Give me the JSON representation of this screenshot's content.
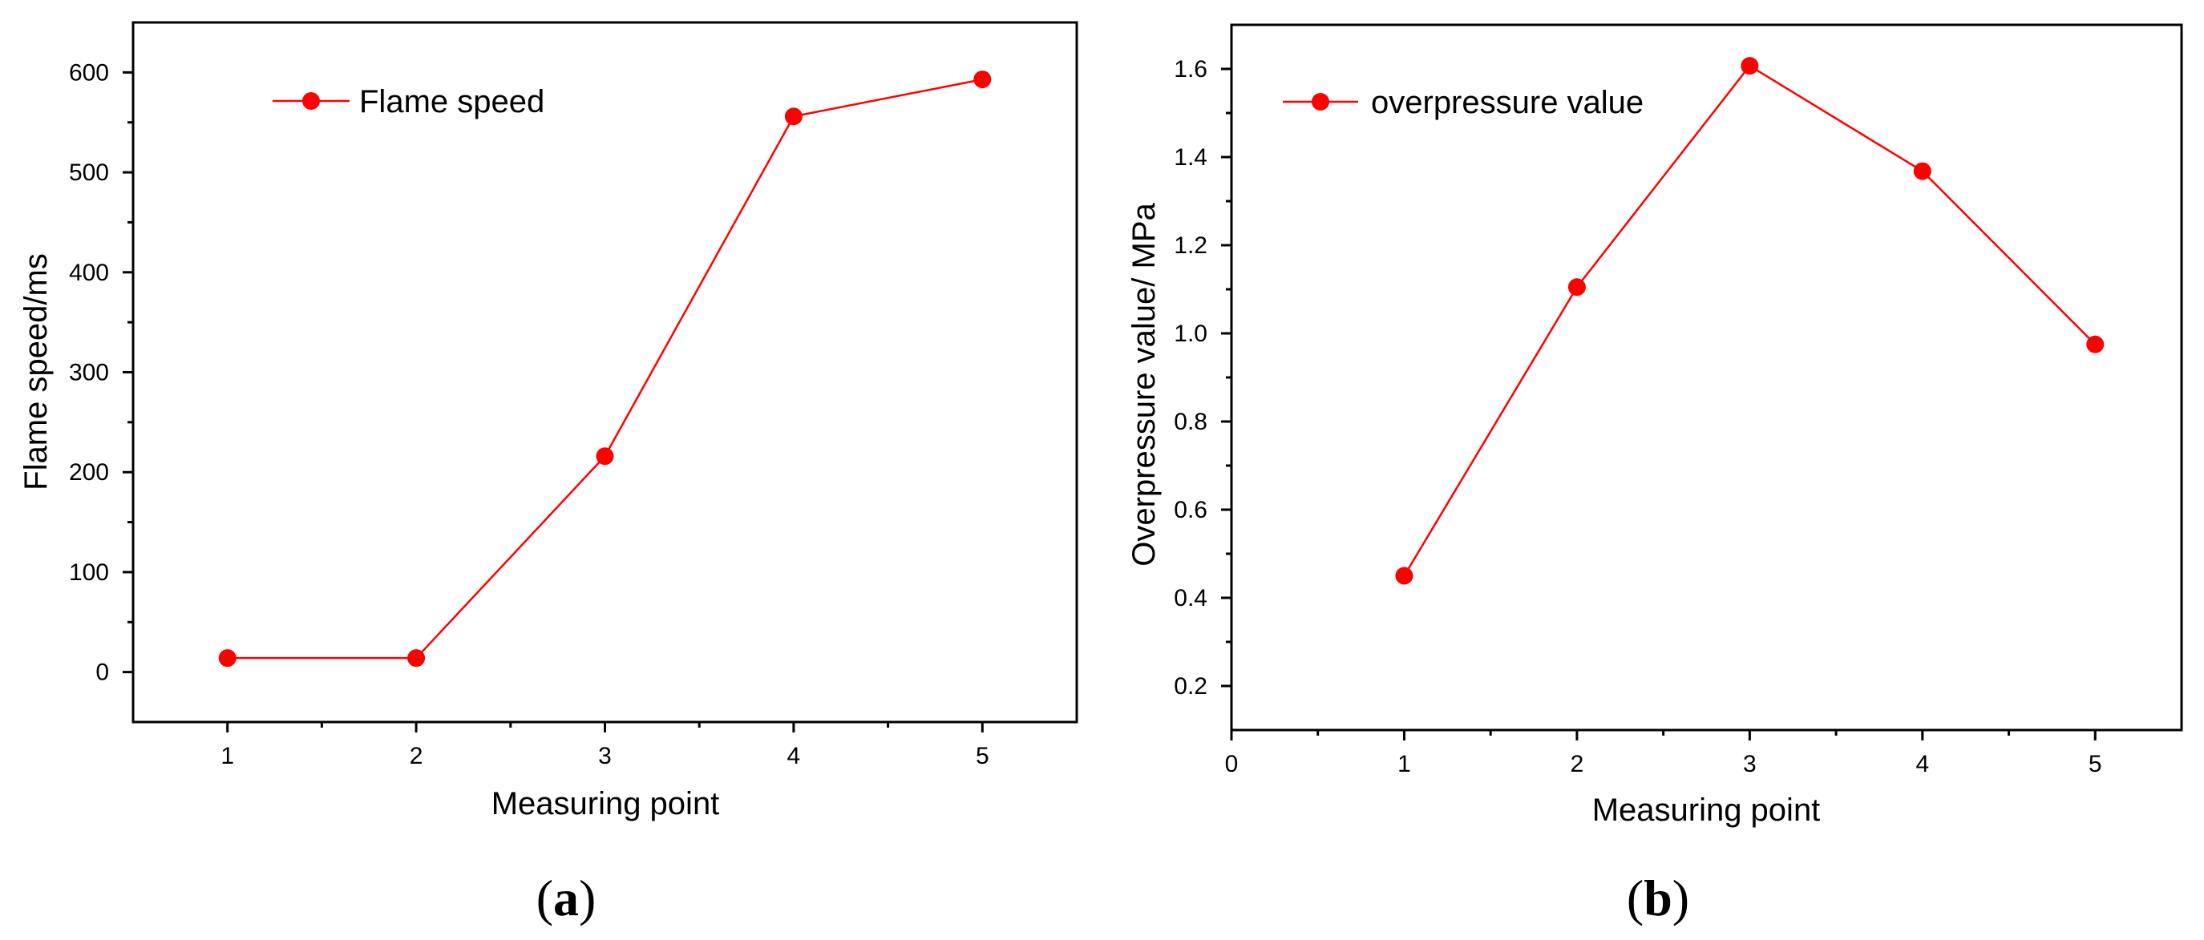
{
  "chart_data": [
    {
      "type": "line",
      "panel_label": {
        "open": "(",
        "letter": "a",
        "close": ")"
      },
      "title": "",
      "xlabel": "Measuring point",
      "ylabel": "Flame speed/ms",
      "xlim": [
        0.5,
        5.5
      ],
      "ylim": [
        -50,
        650
      ],
      "x_ticks": [
        1,
        2,
        3,
        4,
        5
      ],
      "x_tick_labels": [
        "1",
        "2",
        "3",
        "4",
        "5"
      ],
      "x_minor_ticks": [
        1.5,
        2.5,
        3.5,
        4.5
      ],
      "y_ticks": [
        0,
        100,
        200,
        300,
        400,
        500,
        600
      ],
      "y_tick_labels": [
        "0",
        "100",
        "200",
        "300",
        "400",
        "500",
        "600"
      ],
      "y_minor_ticks": [
        50,
        150,
        250,
        350,
        450,
        550
      ],
      "grid": false,
      "legend_position": "top-left",
      "series": [
        {
          "name": "Flame speed",
          "color": "#ff0000",
          "x": [
            1,
            2,
            3,
            4,
            5
          ],
          "values": [
            14,
            14,
            216,
            556,
            593
          ]
        }
      ]
    },
    {
      "type": "line",
      "panel_label": {
        "open": "(",
        "letter": "b",
        "close": ")"
      },
      "title": "",
      "xlabel": "Measuring point",
      "ylabel": "Overpressure value/ MPa",
      "xlim": [
        0,
        5.5
      ],
      "ylim": [
        0.1,
        1.7
      ],
      "x_ticks": [
        0,
        1,
        2,
        3,
        4,
        5
      ],
      "x_tick_labels": [
        "0",
        "1",
        "2",
        "3",
        "4",
        "5"
      ],
      "x_minor_ticks": [
        0.5,
        1.5,
        2.5,
        3.5,
        4.5
      ],
      "y_ticks": [
        0.2,
        0.4,
        0.6,
        0.8,
        1.0,
        1.2,
        1.4,
        1.6
      ],
      "y_tick_labels": [
        "0.2",
        "0.4",
        "0.6",
        "0.8",
        "1.0",
        "1.2",
        "1.4",
        "1.6"
      ],
      "y_minor_ticks": [
        0.3,
        0.5,
        0.7,
        0.9,
        1.1,
        1.3,
        1.5
      ],
      "grid": false,
      "legend_position": "top-left",
      "series": [
        {
          "name": "overpressure value",
          "color": "#ff0000",
          "x": [
            1,
            2,
            3,
            4,
            5
          ],
          "values": [
            0.45,
            1.105,
            1.607,
            1.368,
            0.975
          ]
        }
      ]
    }
  ]
}
